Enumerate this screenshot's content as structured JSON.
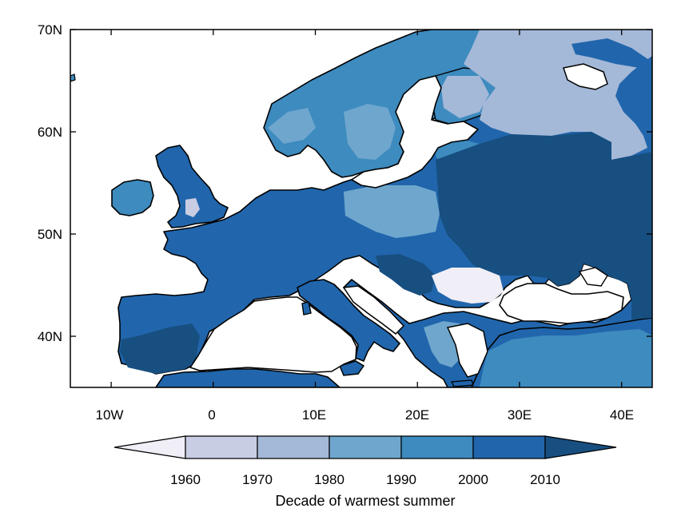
{
  "map": {
    "x_ticks": [
      "10W",
      "0",
      "10E",
      "20E",
      "30E",
      "40E"
    ],
    "y_ticks": [
      "70N",
      "60N",
      "50N",
      "40N"
    ],
    "extent": {
      "lon": [
        -14,
        43
      ],
      "lat": [
        35,
        70
      ]
    }
  },
  "colorbar": {
    "title": "Decade of warmest summer",
    "tick_labels": [
      "1960",
      "1970",
      "1980",
      "1990",
      "2000",
      "2010"
    ],
    "colors": [
      "#f0eef6",
      "#c9cde4",
      "#a4b8d8",
      "#6ea6cd",
      "#3d8bbf",
      "#2166ac",
      "#174f80"
    ],
    "color_meaning": [
      "before 1960",
      "1960s",
      "1970s",
      "1980s",
      "1990s",
      "2000s",
      "2010s"
    ]
  },
  "colors": {
    "sea": "#ffffff",
    "coast": "#000000",
    "frame": "#000000"
  }
}
